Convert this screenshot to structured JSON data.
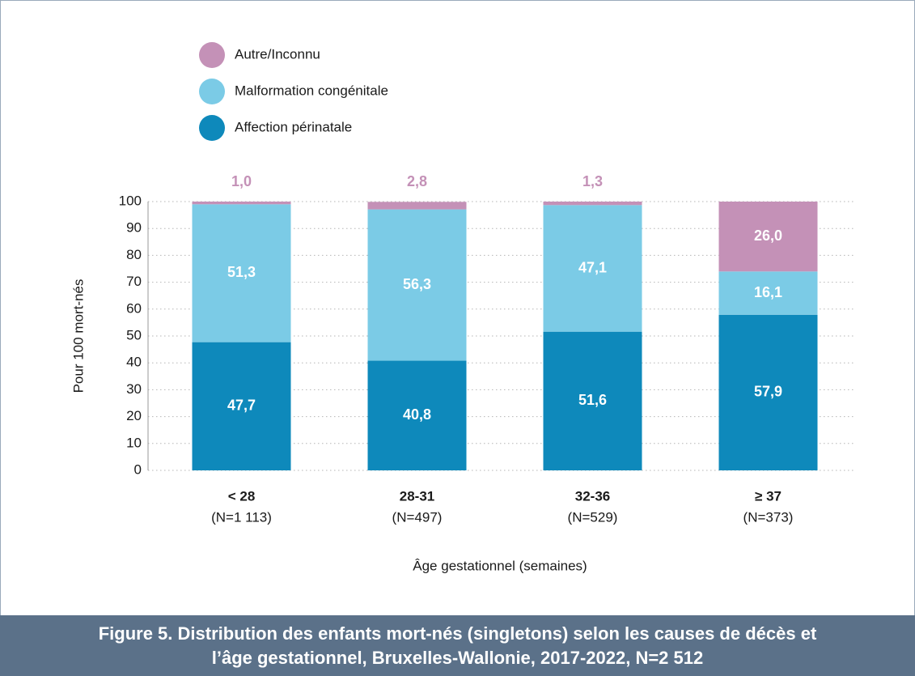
{
  "chart_data": {
    "type": "stacked_bar",
    "title": "Figure 5. Distribution des enfants mort-nés (singletons) selon les causes de décès et l’âge gestationnel, Bruxelles-Wallonie, 2017-2022, N=2 512",
    "ylabel": "Pour 100 mort-nés",
    "xlabel": "Âge gestationnel (semaines)",
    "categories": [
      "< 28",
      "28-31",
      "32-36",
      "≥ 37"
    ],
    "category_counts": [
      "(N=1 113)",
      "(N=497)",
      "(N=529)",
      "(N=373)"
    ],
    "series": [
      {
        "name": "Affection périnatale",
        "color": "#0e89bb",
        "values": [
          47.7,
          40.8,
          51.6,
          57.9
        ],
        "value_labels": [
          "47,7",
          "40,8",
          "51,6",
          "57,9"
        ]
      },
      {
        "name": "Malformation congénitale",
        "color": "#7bcbe6",
        "values": [
          51.3,
          56.3,
          47.1,
          16.1
        ],
        "value_labels": [
          "51,3",
          "56,3",
          "47,1",
          "16,1"
        ]
      },
      {
        "name": "Autre/Inconnu",
        "color": "#c491b7",
        "values": [
          1.0,
          2.8,
          1.3,
          26.0
        ],
        "value_labels": [
          "1,0",
          "2,8",
          "1,3",
          "26,0"
        ]
      }
    ],
    "ylim": [
      0,
      100
    ],
    "yticks": [
      0,
      10,
      20,
      30,
      40,
      50,
      60,
      70,
      80,
      90,
      100
    ],
    "grid": true
  }
}
